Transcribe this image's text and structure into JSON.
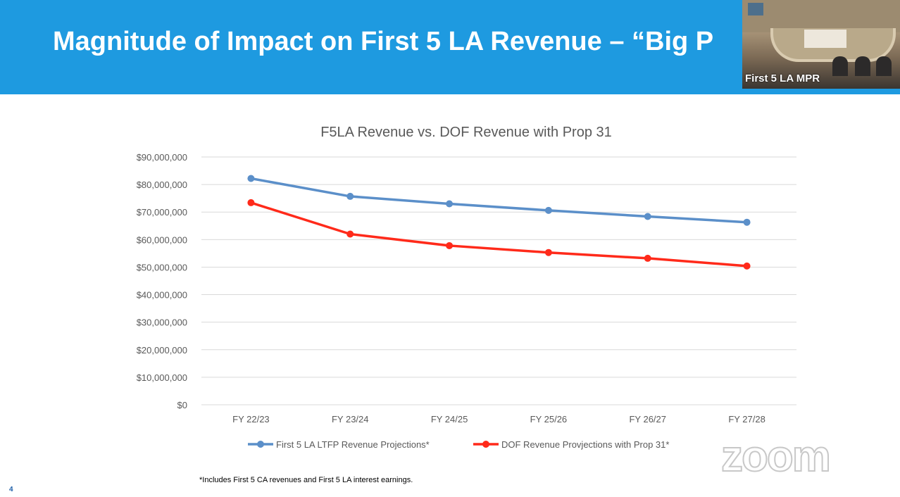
{
  "slide": {
    "title": "Magnitude of Impact on First 5 LA Revenue – “Big P",
    "footnote": "*Includes First 5 CA revenues and First 5 LA interest earnings.",
    "page_number": "4"
  },
  "video": {
    "participant_name": "First 5 LA MPR",
    "watermark": "zoom"
  },
  "colors": {
    "header": "#1e9ae0",
    "series_blue": "#5b8fc9",
    "series_red": "#ff2a1a",
    "grid": "#d9d9d9",
    "text": "#595959"
  },
  "chart_data": {
    "type": "line",
    "title": "F5LA Revenue vs. DOF Revenue with Prop 31",
    "categories": [
      "FY 22/23",
      "FY 23/24",
      "FY 24/25",
      "FY 25/26",
      "FY 26/27",
      "FY 27/28"
    ],
    "series": [
      {
        "name": "First 5 LA LTFP Revenue Projections*",
        "color": "#5b8fc9",
        "values": [
          82200000,
          75700000,
          73000000,
          70600000,
          68400000,
          66300000
        ]
      },
      {
        "name": "DOF Revenue Provjections with Prop 31*",
        "color": "#ff2a1a",
        "values": [
          73400000,
          62000000,
          57800000,
          55300000,
          53200000,
          50400000
        ]
      }
    ],
    "ylim": [
      0,
      90000000
    ],
    "y_ticks": [
      {
        "value": 0,
        "label": "$0"
      },
      {
        "value": 10000000,
        "label": "$10,000,000"
      },
      {
        "value": 20000000,
        "label": "$20,000,000"
      },
      {
        "value": 30000000,
        "label": "$30,000,000"
      },
      {
        "value": 40000000,
        "label": "$40,000,000"
      },
      {
        "value": 50000000,
        "label": "$50,000,000"
      },
      {
        "value": 60000000,
        "label": "$60,000,000"
      },
      {
        "value": 70000000,
        "label": "$70,000,000"
      },
      {
        "value": 80000000,
        "label": "$80,000,000"
      },
      {
        "value": 90000000,
        "label": "$90,000,000"
      }
    ],
    "grid": true,
    "legend_position": "bottom"
  }
}
